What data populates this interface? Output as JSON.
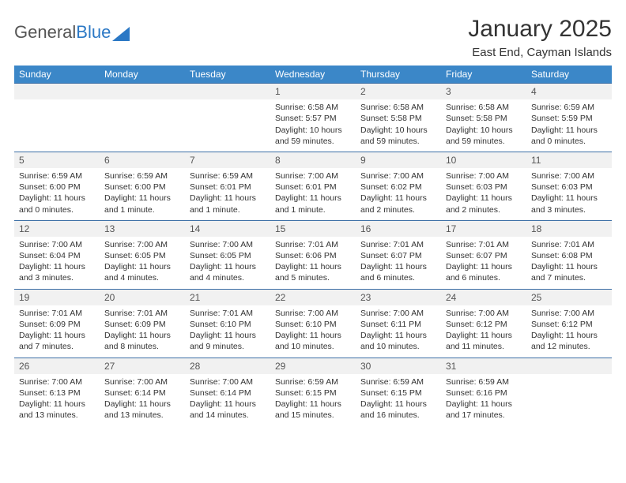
{
  "logo": {
    "text1": "General",
    "text2": "Blue"
  },
  "title": "January 2025",
  "location": "East End, Cayman Islands",
  "colors": {
    "header_bg": "#3b87c8",
    "header_text": "#ffffff",
    "daynum_bg": "#f1f1f1",
    "row_border": "#3b6ea5",
    "text": "#333333",
    "logo_gray": "#555555",
    "logo_blue": "#2b78c5",
    "background": "#ffffff"
  },
  "typography": {
    "title_fontsize": 30,
    "location_fontsize": 15,
    "header_fontsize": 12,
    "daynum_fontsize": 12,
    "cell_fontsize": 10.5
  },
  "days": [
    "Sunday",
    "Monday",
    "Tuesday",
    "Wednesday",
    "Thursday",
    "Friday",
    "Saturday"
  ],
  "weeks": [
    [
      null,
      null,
      null,
      {
        "n": "1",
        "sr": "Sunrise: 6:58 AM",
        "ss": "Sunset: 5:57 PM",
        "dl": "Daylight: 10 hours and 59 minutes."
      },
      {
        "n": "2",
        "sr": "Sunrise: 6:58 AM",
        "ss": "Sunset: 5:58 PM",
        "dl": "Daylight: 10 hours and 59 minutes."
      },
      {
        "n": "3",
        "sr": "Sunrise: 6:58 AM",
        "ss": "Sunset: 5:58 PM",
        "dl": "Daylight: 10 hours and 59 minutes."
      },
      {
        "n": "4",
        "sr": "Sunrise: 6:59 AM",
        "ss": "Sunset: 5:59 PM",
        "dl": "Daylight: 11 hours and 0 minutes."
      }
    ],
    [
      {
        "n": "5",
        "sr": "Sunrise: 6:59 AM",
        "ss": "Sunset: 6:00 PM",
        "dl": "Daylight: 11 hours and 0 minutes."
      },
      {
        "n": "6",
        "sr": "Sunrise: 6:59 AM",
        "ss": "Sunset: 6:00 PM",
        "dl": "Daylight: 11 hours and 1 minute."
      },
      {
        "n": "7",
        "sr": "Sunrise: 6:59 AM",
        "ss": "Sunset: 6:01 PM",
        "dl": "Daylight: 11 hours and 1 minute."
      },
      {
        "n": "8",
        "sr": "Sunrise: 7:00 AM",
        "ss": "Sunset: 6:01 PM",
        "dl": "Daylight: 11 hours and 1 minute."
      },
      {
        "n": "9",
        "sr": "Sunrise: 7:00 AM",
        "ss": "Sunset: 6:02 PM",
        "dl": "Daylight: 11 hours and 2 minutes."
      },
      {
        "n": "10",
        "sr": "Sunrise: 7:00 AM",
        "ss": "Sunset: 6:03 PM",
        "dl": "Daylight: 11 hours and 2 minutes."
      },
      {
        "n": "11",
        "sr": "Sunrise: 7:00 AM",
        "ss": "Sunset: 6:03 PM",
        "dl": "Daylight: 11 hours and 3 minutes."
      }
    ],
    [
      {
        "n": "12",
        "sr": "Sunrise: 7:00 AM",
        "ss": "Sunset: 6:04 PM",
        "dl": "Daylight: 11 hours and 3 minutes."
      },
      {
        "n": "13",
        "sr": "Sunrise: 7:00 AM",
        "ss": "Sunset: 6:05 PM",
        "dl": "Daylight: 11 hours and 4 minutes."
      },
      {
        "n": "14",
        "sr": "Sunrise: 7:00 AM",
        "ss": "Sunset: 6:05 PM",
        "dl": "Daylight: 11 hours and 4 minutes."
      },
      {
        "n": "15",
        "sr": "Sunrise: 7:01 AM",
        "ss": "Sunset: 6:06 PM",
        "dl": "Daylight: 11 hours and 5 minutes."
      },
      {
        "n": "16",
        "sr": "Sunrise: 7:01 AM",
        "ss": "Sunset: 6:07 PM",
        "dl": "Daylight: 11 hours and 6 minutes."
      },
      {
        "n": "17",
        "sr": "Sunrise: 7:01 AM",
        "ss": "Sunset: 6:07 PM",
        "dl": "Daylight: 11 hours and 6 minutes."
      },
      {
        "n": "18",
        "sr": "Sunrise: 7:01 AM",
        "ss": "Sunset: 6:08 PM",
        "dl": "Daylight: 11 hours and 7 minutes."
      }
    ],
    [
      {
        "n": "19",
        "sr": "Sunrise: 7:01 AM",
        "ss": "Sunset: 6:09 PM",
        "dl": "Daylight: 11 hours and 7 minutes."
      },
      {
        "n": "20",
        "sr": "Sunrise: 7:01 AM",
        "ss": "Sunset: 6:09 PM",
        "dl": "Daylight: 11 hours and 8 minutes."
      },
      {
        "n": "21",
        "sr": "Sunrise: 7:01 AM",
        "ss": "Sunset: 6:10 PM",
        "dl": "Daylight: 11 hours and 9 minutes."
      },
      {
        "n": "22",
        "sr": "Sunrise: 7:00 AM",
        "ss": "Sunset: 6:10 PM",
        "dl": "Daylight: 11 hours and 10 minutes."
      },
      {
        "n": "23",
        "sr": "Sunrise: 7:00 AM",
        "ss": "Sunset: 6:11 PM",
        "dl": "Daylight: 11 hours and 10 minutes."
      },
      {
        "n": "24",
        "sr": "Sunrise: 7:00 AM",
        "ss": "Sunset: 6:12 PM",
        "dl": "Daylight: 11 hours and 11 minutes."
      },
      {
        "n": "25",
        "sr": "Sunrise: 7:00 AM",
        "ss": "Sunset: 6:12 PM",
        "dl": "Daylight: 11 hours and 12 minutes."
      }
    ],
    [
      {
        "n": "26",
        "sr": "Sunrise: 7:00 AM",
        "ss": "Sunset: 6:13 PM",
        "dl": "Daylight: 11 hours and 13 minutes."
      },
      {
        "n": "27",
        "sr": "Sunrise: 7:00 AM",
        "ss": "Sunset: 6:14 PM",
        "dl": "Daylight: 11 hours and 13 minutes."
      },
      {
        "n": "28",
        "sr": "Sunrise: 7:00 AM",
        "ss": "Sunset: 6:14 PM",
        "dl": "Daylight: 11 hours and 14 minutes."
      },
      {
        "n": "29",
        "sr": "Sunrise: 6:59 AM",
        "ss": "Sunset: 6:15 PM",
        "dl": "Daylight: 11 hours and 15 minutes."
      },
      {
        "n": "30",
        "sr": "Sunrise: 6:59 AM",
        "ss": "Sunset: 6:15 PM",
        "dl": "Daylight: 11 hours and 16 minutes."
      },
      {
        "n": "31",
        "sr": "Sunrise: 6:59 AM",
        "ss": "Sunset: 6:16 PM",
        "dl": "Daylight: 11 hours and 17 minutes."
      },
      null
    ]
  ]
}
